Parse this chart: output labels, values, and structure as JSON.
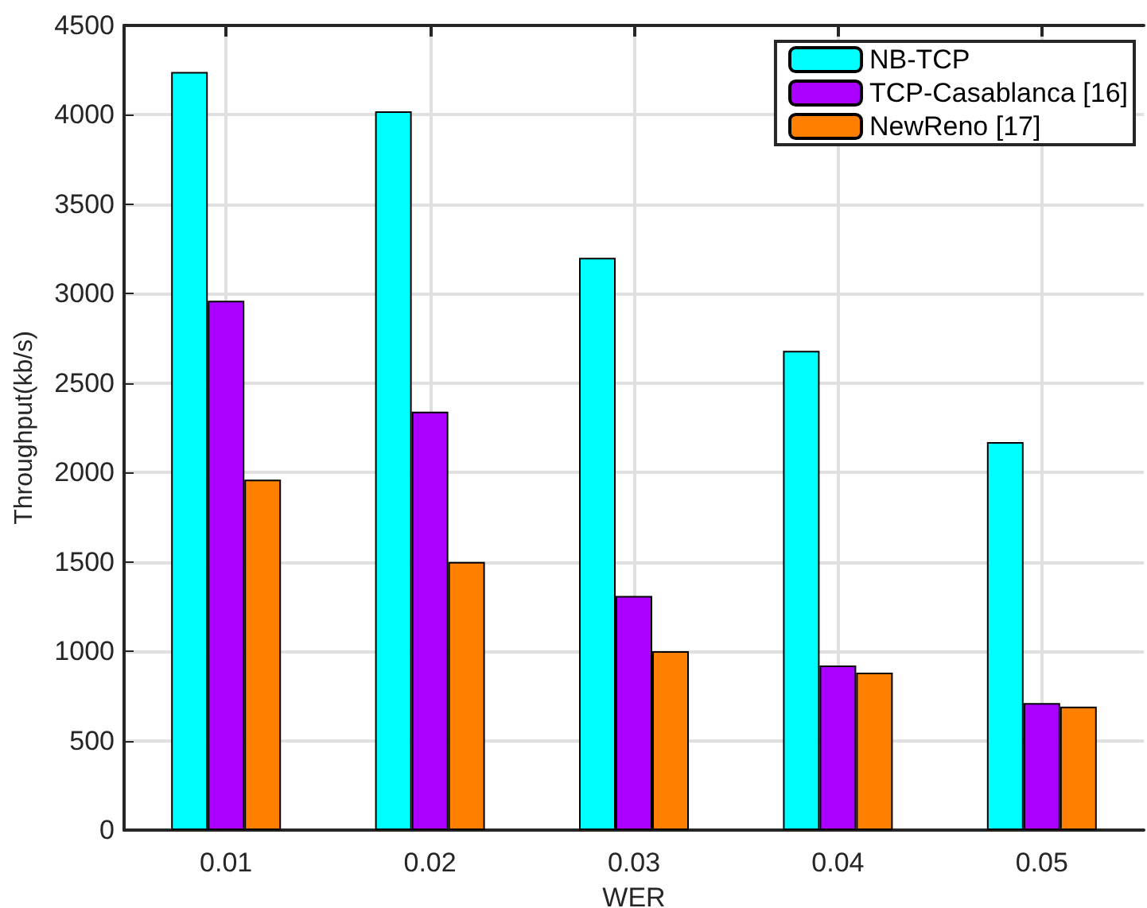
{
  "chart_data": {
    "type": "bar",
    "xlabel": "WER",
    "ylabel": "Throughput(kb/s)",
    "categories": [
      "0.01",
      "0.02",
      "0.03",
      "0.04",
      "0.05"
    ],
    "series": [
      {
        "name": "NB-TCP",
        "color": "#00ffff",
        "values": [
          4240,
          4020,
          3200,
          2680,
          2170
        ]
      },
      {
        "name": "TCP-Casablanca [16]",
        "color": "#aa00ff",
        "values": [
          2960,
          2340,
          1310,
          920,
          710
        ]
      },
      {
        "name": "NewReno [17]",
        "color": "#ff8000",
        "values": [
          1960,
          1500,
          1000,
          880,
          690
        ]
      }
    ],
    "ylim": [
      0,
      4500
    ],
    "yticks": [
      0,
      500,
      1000,
      1500,
      2000,
      2500,
      3000,
      3500,
      4000,
      4500
    ],
    "grid": true,
    "legend": "top right"
  }
}
